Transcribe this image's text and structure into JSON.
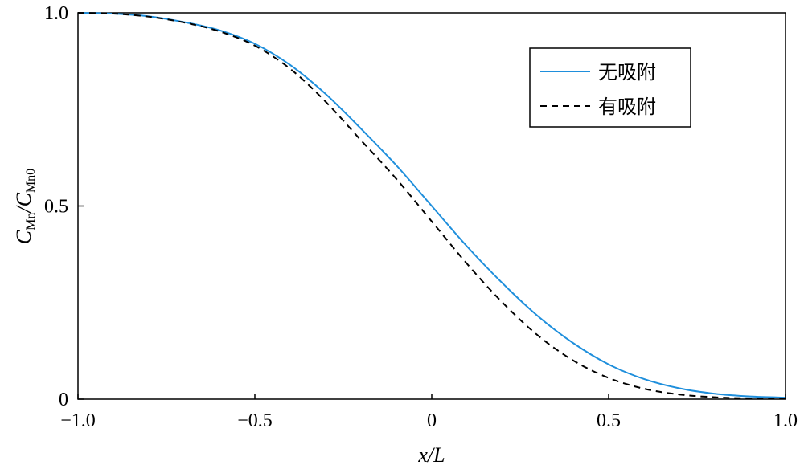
{
  "chart_data": {
    "type": "line",
    "xlabel": "x/L",
    "ylabel": "C_Mn/C_Mn0",
    "ylabel_parts": {
      "c1": "C",
      "s1": "Mn",
      "slash": "/",
      "c2": "C",
      "s2": "Mn0"
    },
    "xlim": [
      -1.0,
      1.0
    ],
    "ylim": [
      0,
      1.0
    ],
    "x_ticks": [
      -1.0,
      -0.5,
      0,
      0.5,
      1.0
    ],
    "x_tick_labels": [
      "−1.0",
      "−0.5",
      "0",
      "0.5",
      "1.0"
    ],
    "y_ticks": [
      0,
      0.5,
      1.0
    ],
    "y_tick_labels": [
      "0",
      "0.5",
      "1.0"
    ],
    "grid": false,
    "legend_position": "top-right",
    "x": [
      -1.0,
      -0.9,
      -0.8,
      -0.7,
      -0.6,
      -0.5,
      -0.4,
      -0.3,
      -0.2,
      -0.1,
      0.0,
      0.1,
      0.2,
      0.3,
      0.4,
      0.5,
      0.6,
      0.7,
      0.8,
      0.9,
      1.0
    ],
    "series": [
      {
        "name": "无吸附",
        "color": "#1f8fdc",
        "dash": "solid",
        "values": [
          1.0,
          0.998,
          0.991,
          0.976,
          0.955,
          0.92,
          0.865,
          0.79,
          0.7,
          0.605,
          0.5,
          0.395,
          0.3,
          0.215,
          0.145,
          0.09,
          0.052,
          0.028,
          0.014,
          0.007,
          0.004
        ]
      },
      {
        "name": "有吸附",
        "color": "#000000",
        "dash": "dashed",
        "values": [
          1.0,
          0.998,
          0.99,
          0.975,
          0.952,
          0.915,
          0.855,
          0.77,
          0.67,
          0.57,
          0.46,
          0.35,
          0.25,
          0.165,
          0.1,
          0.055,
          0.027,
          0.012,
          0.005,
          0.002,
          0.001
        ]
      }
    ]
  }
}
